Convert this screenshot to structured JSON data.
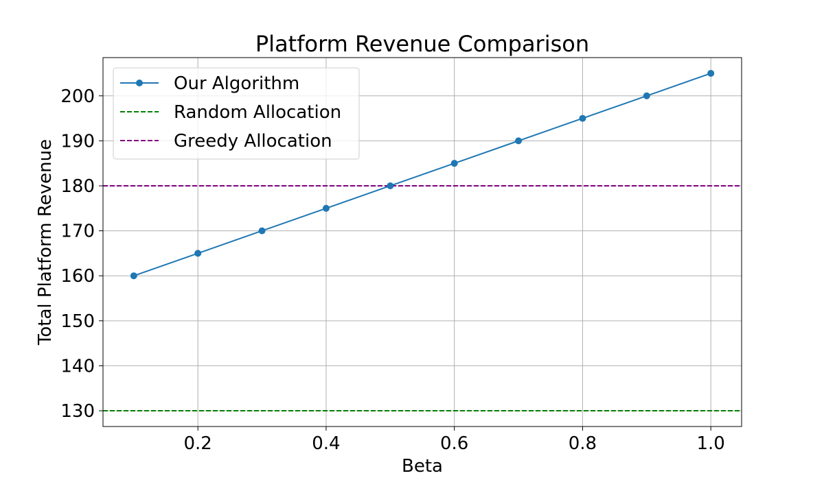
{
  "chart_data": {
    "type": "line",
    "title": "Platform Revenue Comparison",
    "xlabel": "Beta",
    "ylabel": "Total Platform Revenue",
    "xlim": [
      0.052,
      1.048
    ],
    "ylim": [
      126.5,
      208.5
    ],
    "xticks": [
      0.2,
      0.4,
      0.6,
      0.8,
      1.0
    ],
    "xtick_labels": [
      "0.2",
      "0.4",
      "0.6",
      "0.8",
      "1.0"
    ],
    "yticks": [
      130,
      140,
      150,
      160,
      170,
      180,
      190,
      200
    ],
    "ytick_labels": [
      "130",
      "140",
      "150",
      "160",
      "170",
      "180",
      "190",
      "200"
    ],
    "grid": true,
    "legend_position": "top-left",
    "series": [
      {
        "name": "Our Algorithm",
        "kind": "line-marker",
        "color": "#1f77b4",
        "x": [
          0.1,
          0.2,
          0.3,
          0.4,
          0.5,
          0.6,
          0.7,
          0.8,
          0.9,
          1.0
        ],
        "y": [
          160,
          165,
          170,
          175,
          180,
          185,
          190,
          195,
          200,
          205
        ]
      },
      {
        "name": "Random Allocation",
        "kind": "hline-dashed",
        "color": "#008000",
        "y": 130
      },
      {
        "name": "Greedy Allocation",
        "kind": "hline-dashed",
        "color": "#800080",
        "y": 180
      }
    ]
  }
}
